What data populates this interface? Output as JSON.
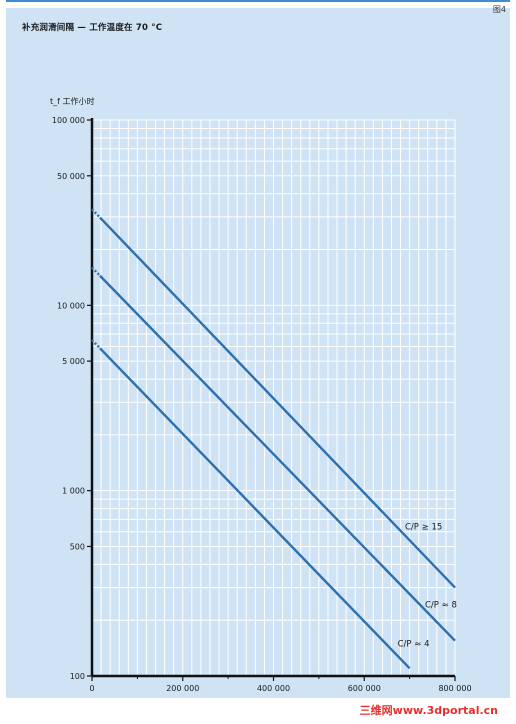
{
  "title": "补充润滑间隔 — 工作温度在 70 °C",
  "corner_text": "图4",
  "watermark": "三维网www.3dportal.cn",
  "colors": {
    "panel": "#cfe3f5",
    "grid": "#ffffff",
    "line": "#2e6fae",
    "axis": "#111111"
  },
  "chart_data": {
    "type": "line",
    "ylabel": "t_f 工作小时",
    "xlabel": "",
    "x_scale": "linear",
    "y_scale": "log",
    "xlim": [
      0,
      800000
    ],
    "ylim": [
      100,
      100000
    ],
    "x_ticks": [
      0,
      200000,
      400000,
      600000,
      800000
    ],
    "x_tick_labels": [
      "0",
      "200 000",
      "400 000",
      "600 000",
      "800 000"
    ],
    "y_ticks": [
      100,
      500,
      1000,
      5000,
      10000,
      50000,
      100000
    ],
    "y_tick_labels": [
      "100",
      "500",
      "1 000",
      "5 000",
      "10 000",
      "50 000",
      "100 000"
    ],
    "grid": true,
    "series": [
      {
        "name": "C/P ≥ 15",
        "x": [
          0,
          800000
        ],
        "y": [
          33000,
          300
        ]
      },
      {
        "name": "C/P ≈ 8",
        "x": [
          0,
          800000
        ],
        "y": [
          16000,
          155
        ]
      },
      {
        "name": "C/P ≈ 4",
        "x": [
          0,
          700000
        ],
        "y": [
          6500,
          110
        ]
      }
    ]
  }
}
